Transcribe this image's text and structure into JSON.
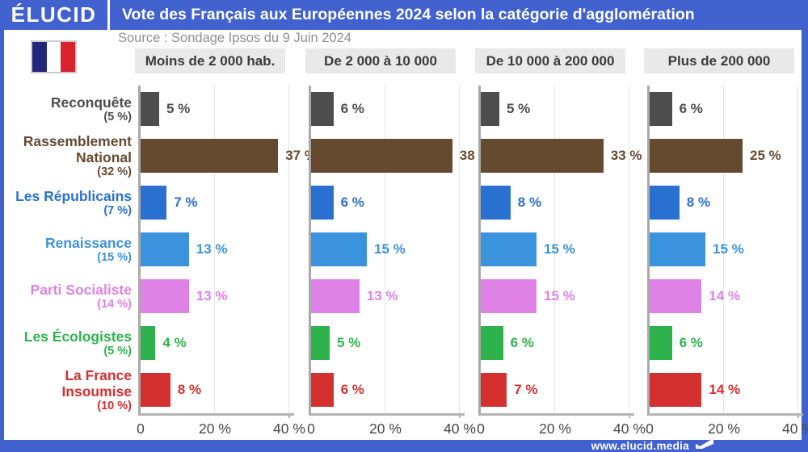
{
  "header": {
    "logo": "ÉLUCID",
    "title": "Vote des Français aux Européennes 2024 selon la catégorie d'agglomération"
  },
  "source": "Source : Sondage Ipsos du 9 Juin 2024",
  "footer": {
    "url": "www.elucid.media"
  },
  "colors": {
    "brand_blue": "#4161ce",
    "pill_bg": "#e9e9e9",
    "axis_gray": "#b4b4b4",
    "tick_text": "#474747"
  },
  "chart_data": {
    "type": "bar",
    "orientation": "horizontal",
    "title": "Vote des Français aux Européennes 2024 selon la catégorie d'agglomération",
    "unit": "%",
    "xlim": [
      0,
      40
    ],
    "grid": true,
    "gridline_values": [
      20,
      40
    ],
    "xticks": [
      {
        "label": "0",
        "value": 0
      },
      {
        "label": "20 %",
        "value": 20
      },
      {
        "label": "40 %",
        "value": 40
      }
    ],
    "value_suffix": " %",
    "groups": [
      "Moins de 2 000 hab.",
      "De 2 000 à 10 000",
      "De 10 000 à 200 000",
      "Plus de 200 000"
    ],
    "parties": [
      {
        "name": "Reconquête",
        "label_lines": [
          "Reconquête"
        ],
        "national_share": "(5 %)",
        "color": "#4d4d4d",
        "values": [
          5,
          6,
          5,
          6
        ]
      },
      {
        "name": "Rassemblement National",
        "label_lines": [
          "Rassemblement",
          "National"
        ],
        "national_share": "(32 %)",
        "color": "#654a2f",
        "values": [
          37,
          38,
          33,
          25
        ]
      },
      {
        "name": "Les Républicains",
        "label_lines": [
          "Les Républicains"
        ],
        "national_share": "(7 %)",
        "color": "#2a70d0",
        "values": [
          7,
          6,
          8,
          8
        ]
      },
      {
        "name": "Renaissance",
        "label_lines": [
          "Renaissance"
        ],
        "national_share": "(15 %)",
        "color": "#3b93de",
        "values": [
          13,
          15,
          15,
          15
        ]
      },
      {
        "name": "Parti Socialiste",
        "label_lines": [
          "Parti Socialiste"
        ],
        "national_share": "(14 %)",
        "color": "#df82e6",
        "values": [
          13,
          13,
          15,
          14
        ]
      },
      {
        "name": "Les Écologistes",
        "label_lines": [
          "Les Écologistes"
        ],
        "national_share": "(5 %)",
        "color": "#2eb34c",
        "values": [
          4,
          5,
          6,
          6
        ]
      },
      {
        "name": "La France Insoumise",
        "label_lines": [
          "La France",
          "Insoumise"
        ],
        "national_share": "(10 %)",
        "color": "#d43030",
        "values": [
          8,
          6,
          7,
          14
        ]
      }
    ]
  }
}
